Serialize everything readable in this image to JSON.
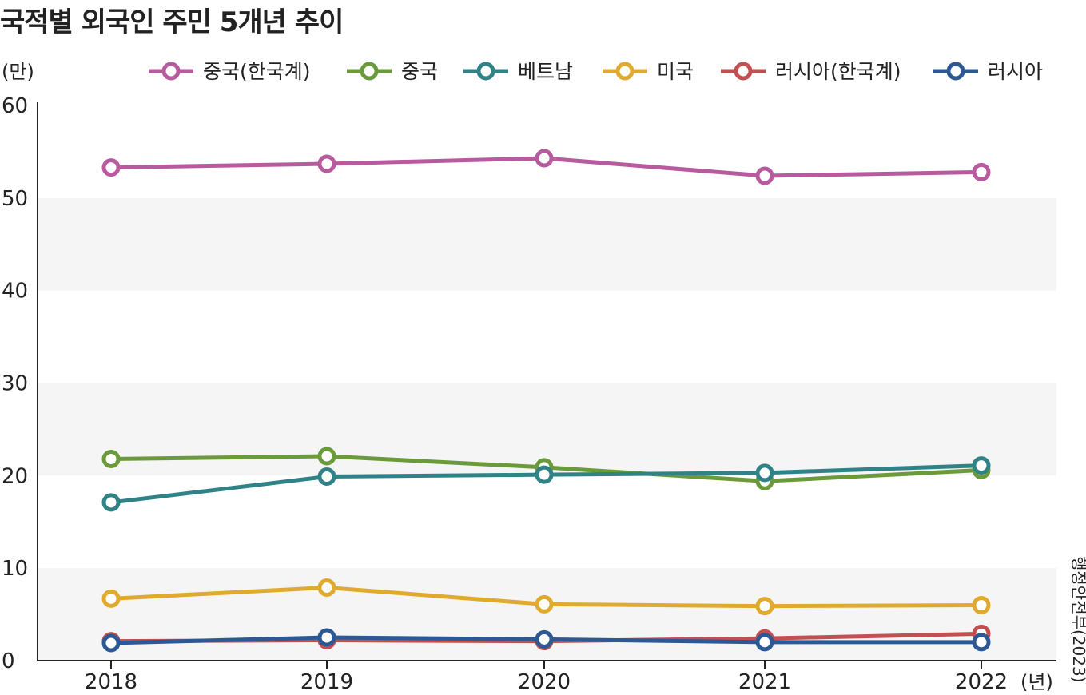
{
  "chart_data": {
    "type": "line",
    "title": "국적별 외국인 주민 5개년 추이",
    "ylabel": "(만)",
    "xlabel": "(년)",
    "source": "행정안전부(2023)",
    "categories": [
      "2018",
      "2019",
      "2020",
      "2021",
      "2022"
    ],
    "ylim": [
      0,
      60
    ],
    "yticks": [
      "0",
      "10",
      "20",
      "30",
      "40",
      "50",
      "60"
    ],
    "grid": "alternating horizontal bands",
    "legend_position": "top",
    "series": [
      {
        "name": "중국(한국계)",
        "color": "#b85a9e",
        "values": [
          53.3,
          53.7,
          54.3,
          52.4,
          52.8
        ]
      },
      {
        "name": "중국",
        "color": "#6a9a3a",
        "values": [
          21.8,
          22.1,
          20.9,
          19.4,
          20.6
        ]
      },
      {
        "name": "베트남",
        "color": "#2f8285",
        "values": [
          17.1,
          19.9,
          20.1,
          20.3,
          21.1
        ]
      },
      {
        "name": "미국",
        "color": "#e0aa2e",
        "values": [
          6.7,
          7.9,
          6.1,
          5.9,
          6.0
        ]
      },
      {
        "name": "러시아(한국계)",
        "color": "#c24f52",
        "values": [
          2.1,
          2.2,
          2.1,
          2.4,
          2.9
        ]
      },
      {
        "name": "러시아",
        "color": "#2c5993",
        "values": [
          1.9,
          2.5,
          2.3,
          2.0,
          2.0
        ]
      }
    ]
  }
}
